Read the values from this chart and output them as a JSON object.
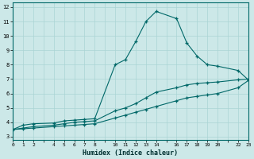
{
  "xlabel": "Humidex (Indice chaleur)",
  "background_color": "#cce8e8",
  "grid_color": "#aad4d4",
  "line_color": "#006868",
  "xlim": [
    0,
    23
  ],
  "ylim": [
    2.8,
    12.3
  ],
  "xticks": [
    0,
    1,
    2,
    3,
    4,
    5,
    6,
    7,
    8,
    9,
    10,
    11,
    12,
    13,
    14,
    15,
    16,
    17,
    18,
    19,
    20,
    21,
    22,
    23
  ],
  "xtick_labels": [
    "0",
    "1",
    "2",
    "",
    "4",
    "5",
    "6",
    "7",
    "8",
    "",
    "10",
    "11",
    "12",
    "13",
    "14",
    "",
    "16",
    "17",
    "18",
    "19",
    "20",
    "",
    "22",
    "23"
  ],
  "yticks": [
    3,
    4,
    5,
    6,
    7,
    8,
    9,
    10,
    11,
    12
  ],
  "series": [
    {
      "x": [
        0,
        1,
        2,
        4,
        5,
        6,
        7,
        8,
        10,
        11,
        12,
        13,
        14,
        16,
        17,
        18,
        19,
        20,
        22,
        23
      ],
      "y": [
        3.5,
        3.8,
        3.9,
        3.95,
        4.1,
        4.15,
        4.2,
        4.25,
        8.0,
        8.35,
        9.6,
        11.0,
        11.7,
        11.2,
        9.5,
        8.6,
        8.0,
        7.9,
        7.6,
        6.95
      ]
    },
    {
      "x": [
        0,
        1,
        2,
        4,
        5,
        6,
        7,
        8,
        10,
        11,
        12,
        13,
        14,
        16,
        17,
        18,
        19,
        20,
        22,
        23
      ],
      "y": [
        3.5,
        3.6,
        3.7,
        3.8,
        3.9,
        4.0,
        4.05,
        4.1,
        4.8,
        5.0,
        5.3,
        5.7,
        6.1,
        6.4,
        6.6,
        6.7,
        6.75,
        6.8,
        6.95,
        7.0
      ]
    },
    {
      "x": [
        0,
        1,
        2,
        4,
        5,
        6,
        7,
        8,
        10,
        11,
        12,
        13,
        14,
        16,
        17,
        18,
        19,
        20,
        22,
        23
      ],
      "y": [
        3.5,
        3.55,
        3.6,
        3.7,
        3.75,
        3.8,
        3.85,
        3.9,
        4.3,
        4.5,
        4.7,
        4.9,
        5.1,
        5.5,
        5.7,
        5.8,
        5.9,
        6.0,
        6.4,
        6.9
      ]
    }
  ]
}
